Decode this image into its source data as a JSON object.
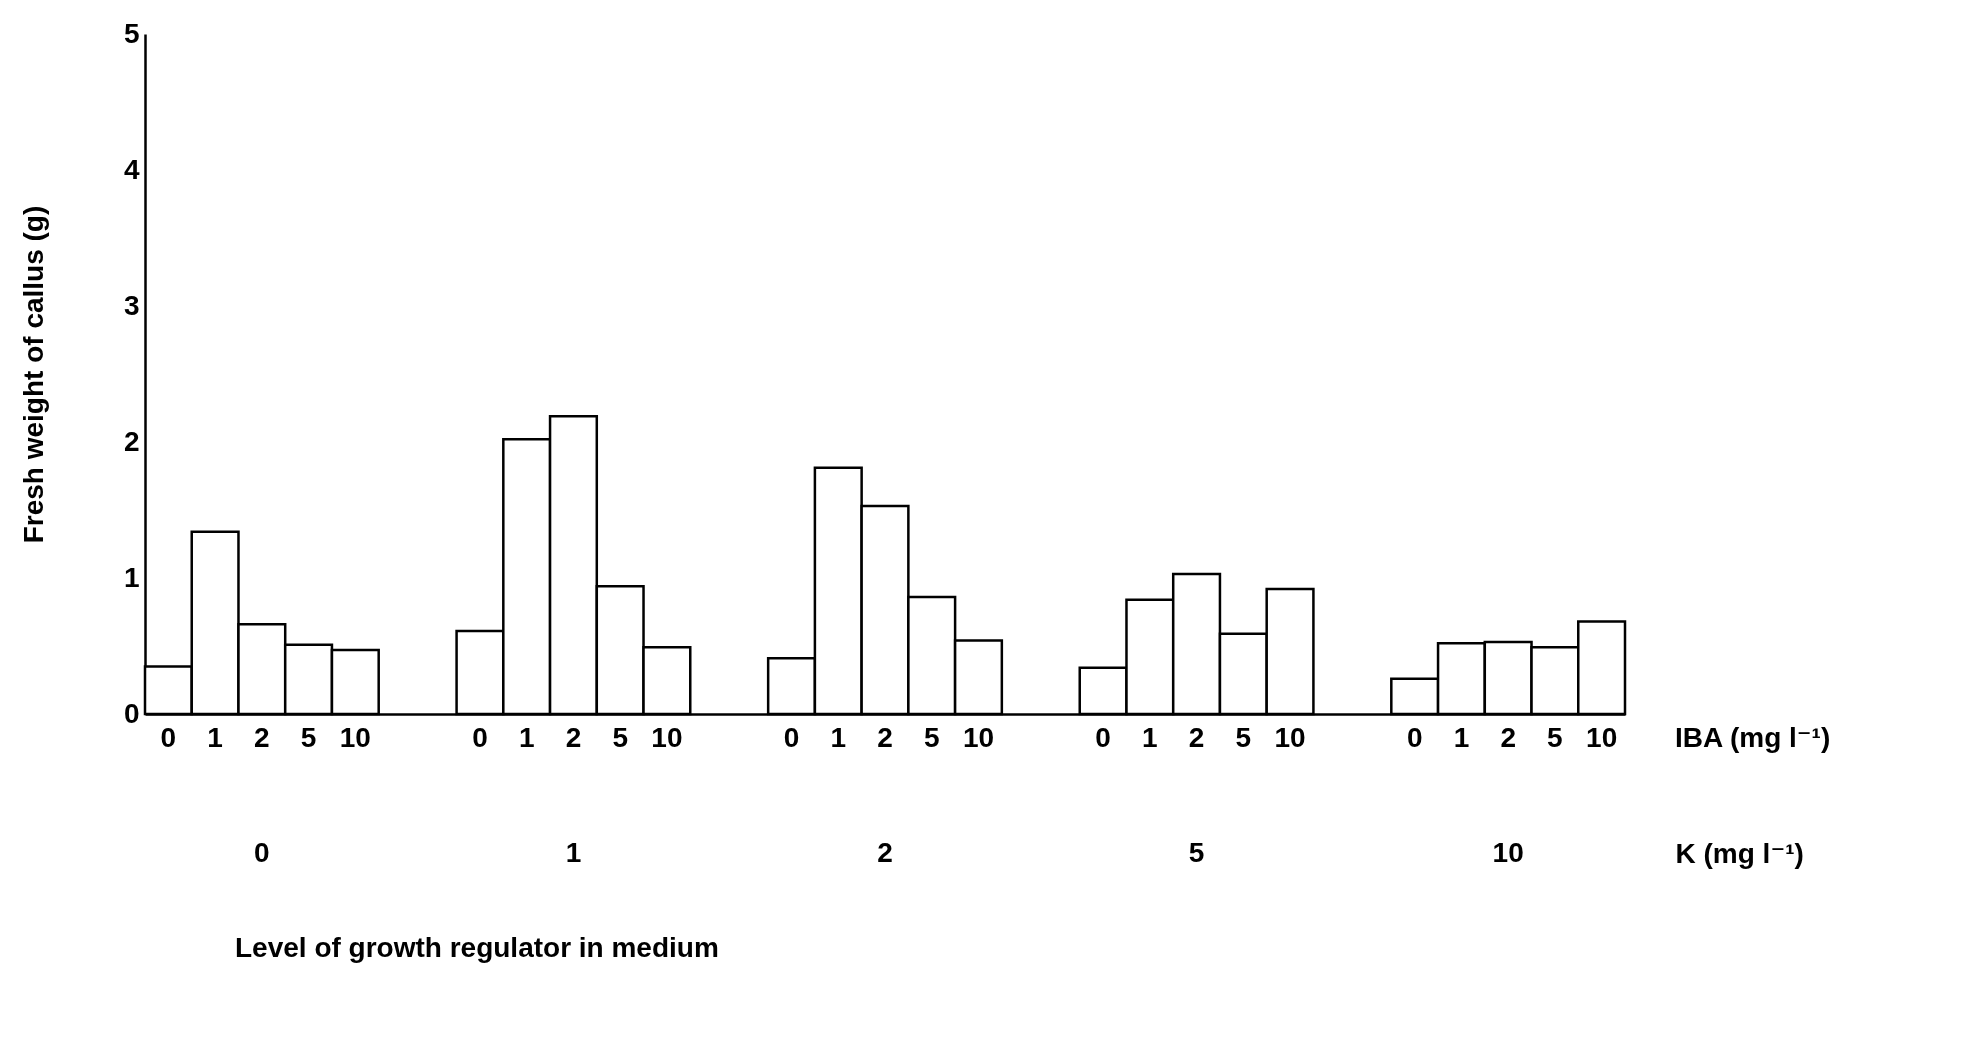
{
  "chart_data": {
    "type": "bar",
    "xlabel": "K (mg l⁻¹)",
    "ylabel": "Fresh weight of callus (g)",
    "legend_title": "IBA (mg l⁻¹)",
    "categories": [
      "0",
      "1",
      "2",
      "5",
      "10"
    ],
    "series": [
      {
        "name": "0",
        "color": "#ffffff",
        "values": [
          0.35,
          0.61,
          0.41,
          0.34,
          0.26
        ]
      },
      {
        "name": "1",
        "color": "#ffffff",
        "values": [
          1.34,
          2.02,
          1.81,
          0.84,
          0.52
        ]
      },
      {
        "name": "2",
        "color": "#ffffff",
        "values": [
          0.66,
          2.19,
          1.53,
          1.03,
          0.53
        ]
      },
      {
        "name": "5",
        "color": "#ffffff",
        "values": [
          0.51,
          0.94,
          0.86,
          0.59,
          0.49
        ]
      },
      {
        "name": "10",
        "color": "#ffffff",
        "values": [
          0.47,
          0.49,
          0.54,
          0.92,
          0.68
        ]
      }
    ],
    "ylim": [
      0,
      5
    ],
    "yticks": [
      0,
      1,
      2,
      3,
      4,
      5
    ],
    "annotations": [
      "Level of growth regulator in medium"
    ]
  }
}
